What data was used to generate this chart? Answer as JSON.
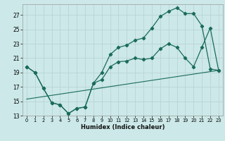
{
  "title": "",
  "xlabel": "Humidex (Indice chaleur)",
  "bg_color": "#cce8e8",
  "grid_color": "#b8d4d4",
  "line_color": "#1a6b5a",
  "xlim": [
    -0.5,
    23.5
  ],
  "ylim": [
    13,
    28.5
  ],
  "xticks": [
    0,
    1,
    2,
    3,
    4,
    5,
    6,
    7,
    8,
    9,
    10,
    11,
    12,
    13,
    14,
    15,
    16,
    17,
    18,
    19,
    20,
    21,
    22,
    23
  ],
  "yticks": [
    13,
    15,
    17,
    19,
    21,
    23,
    25,
    27
  ],
  "upper_x": [
    0,
    1,
    2,
    3,
    4,
    5,
    6,
    7,
    8,
    9,
    10,
    11,
    12,
    13,
    14,
    15,
    16,
    17,
    18,
    19,
    20,
    21,
    22,
    23
  ],
  "upper_y": [
    19.8,
    19.0,
    16.8,
    14.8,
    14.5,
    13.3,
    14.0,
    14.2,
    17.5,
    19.0,
    21.5,
    22.5,
    22.8,
    23.5,
    23.8,
    25.2,
    26.8,
    27.5,
    28.0,
    27.2,
    27.2,
    25.5,
    19.5,
    19.3
  ],
  "lower_x": [
    0,
    1,
    2,
    3,
    4,
    5,
    6,
    7,
    8,
    9,
    10,
    11,
    12,
    13,
    14,
    15,
    16,
    17,
    18,
    19,
    20,
    21,
    22,
    23
  ],
  "lower_y": [
    19.8,
    19.0,
    16.8,
    14.8,
    14.5,
    13.3,
    14.0,
    14.2,
    17.5,
    18.0,
    19.8,
    20.5,
    20.6,
    21.0,
    20.8,
    21.0,
    22.3,
    23.0,
    22.5,
    21.0,
    19.8,
    22.5,
    25.2,
    19.3
  ],
  "trend_x": [
    0,
    23
  ],
  "trend_y": [
    15.3,
    19.3
  ]
}
